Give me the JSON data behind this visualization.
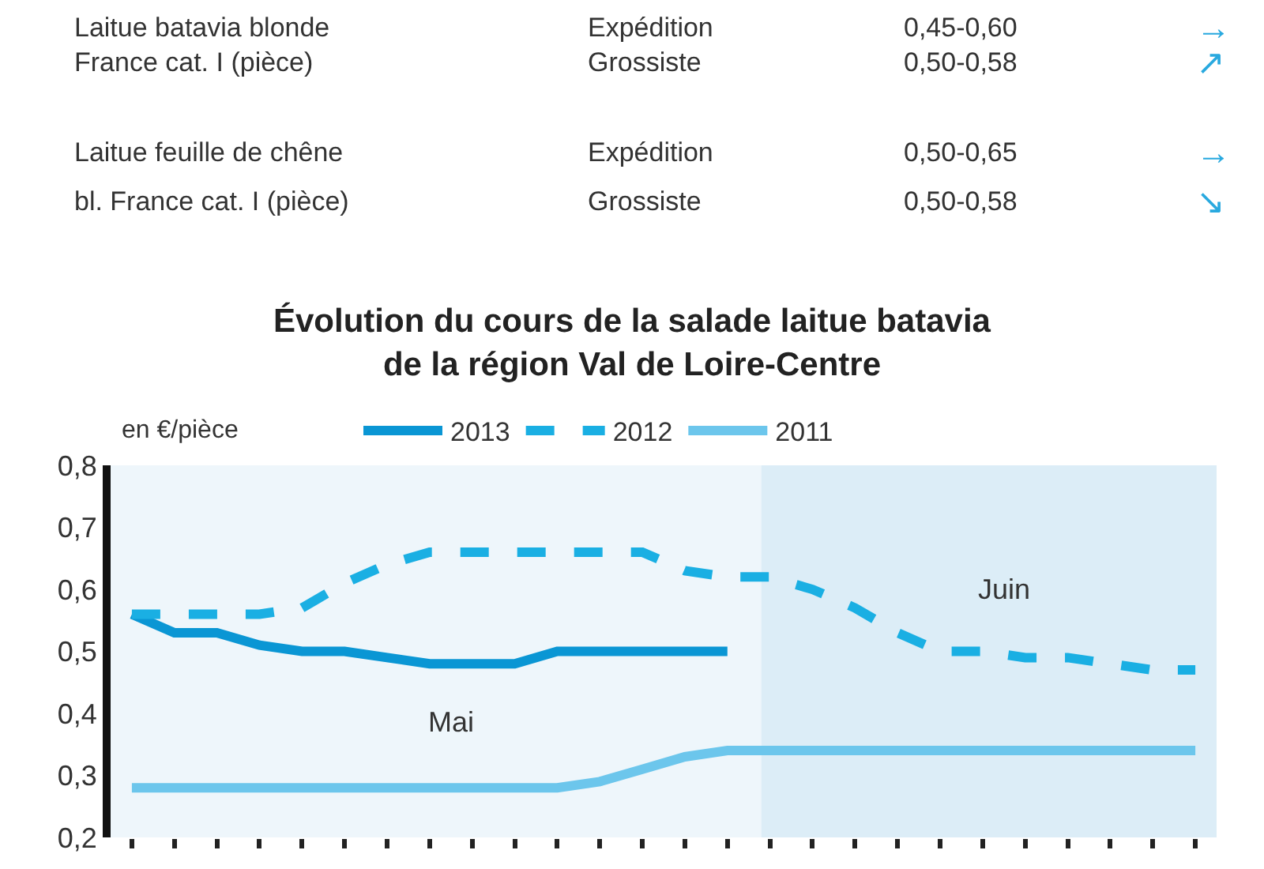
{
  "chart_data": [
    {
      "type": "other",
      "annotations": [
        "Laitue batavia blonde",
        "Expédition",
        "0,45-0,60",
        "→",
        "France cat. I (pièce)",
        "Grossiste",
        "0,50-0,58",
        "↗",
        "Laitue feuille de chêne",
        "Expédition",
        "0,50-0,65",
        "→",
        "bl. France cat. I (pièce)",
        "Grossiste",
        "0,50-0,58",
        "↘"
      ]
    },
    {
      "type": "line",
      "title": "Évolution du cours de la salade laitue batavia\nde la région Val de Loire-Centre",
      "ylabel": "en €/pièce",
      "categories": [
        null,
        null,
        null,
        null,
        null,
        null,
        null,
        null,
        null,
        null,
        null,
        null,
        null,
        null,
        null,
        null,
        null,
        null,
        null,
        null,
        null,
        null,
        null,
        null,
        null,
        null
      ],
      "series": [
        {
          "name": "2013",
          "color": "#0a96d4",
          "line_style": "solid",
          "values": [
            0.56,
            0.53,
            0.53,
            0.51,
            0.5,
            0.5,
            0.49,
            0.48,
            0.48,
            0.48,
            0.5,
            0.5,
            0.5,
            0.5,
            0.5,
            null,
            null,
            null,
            null,
            null,
            null,
            null,
            null,
            null,
            null,
            null
          ]
        },
        {
          "name": "2012",
          "color": "#1aafe3",
          "line_style": "dashed",
          "values": [
            0.56,
            0.56,
            0.56,
            0.56,
            0.57,
            0.61,
            0.64,
            0.66,
            0.66,
            0.66,
            0.66,
            0.66,
            0.66,
            0.63,
            0.62,
            0.62,
            0.6,
            0.57,
            0.53,
            0.5,
            0.5,
            0.49,
            0.49,
            0.48,
            0.47,
            0.47
          ]
        },
        {
          "name": "2011",
          "color": "#6cc6ec",
          "line_style": "solid",
          "values": [
            0.28,
            0.28,
            0.28,
            0.28,
            0.28,
            0.28,
            0.28,
            0.28,
            0.28,
            0.28,
            0.28,
            0.29,
            0.31,
            0.33,
            0.34,
            0.34,
            0.34,
            0.34,
            0.34,
            0.34,
            0.34,
            0.34,
            0.34,
            0.34,
            0.34,
            0.34
          ]
        }
      ],
      "ylim": [
        0.2,
        0.8
      ],
      "yticks": [
        {
          "value": 0.2,
          "label": "0,2"
        },
        {
          "value": 0.3,
          "label": "0,3"
        },
        {
          "value": 0.4,
          "label": "0,4"
        },
        {
          "value": 0.5,
          "label": "0,5"
        },
        {
          "value": 0.6,
          "label": "0,6"
        },
        {
          "value": 0.7,
          "label": "0,7"
        },
        {
          "value": 0.8,
          "label": "0,8"
        }
      ],
      "annotations": [
        "Mai",
        "Juin"
      ],
      "legend": "top",
      "grid": false,
      "marker": "none",
      "tick_labels": "y"
    }
  ]
}
